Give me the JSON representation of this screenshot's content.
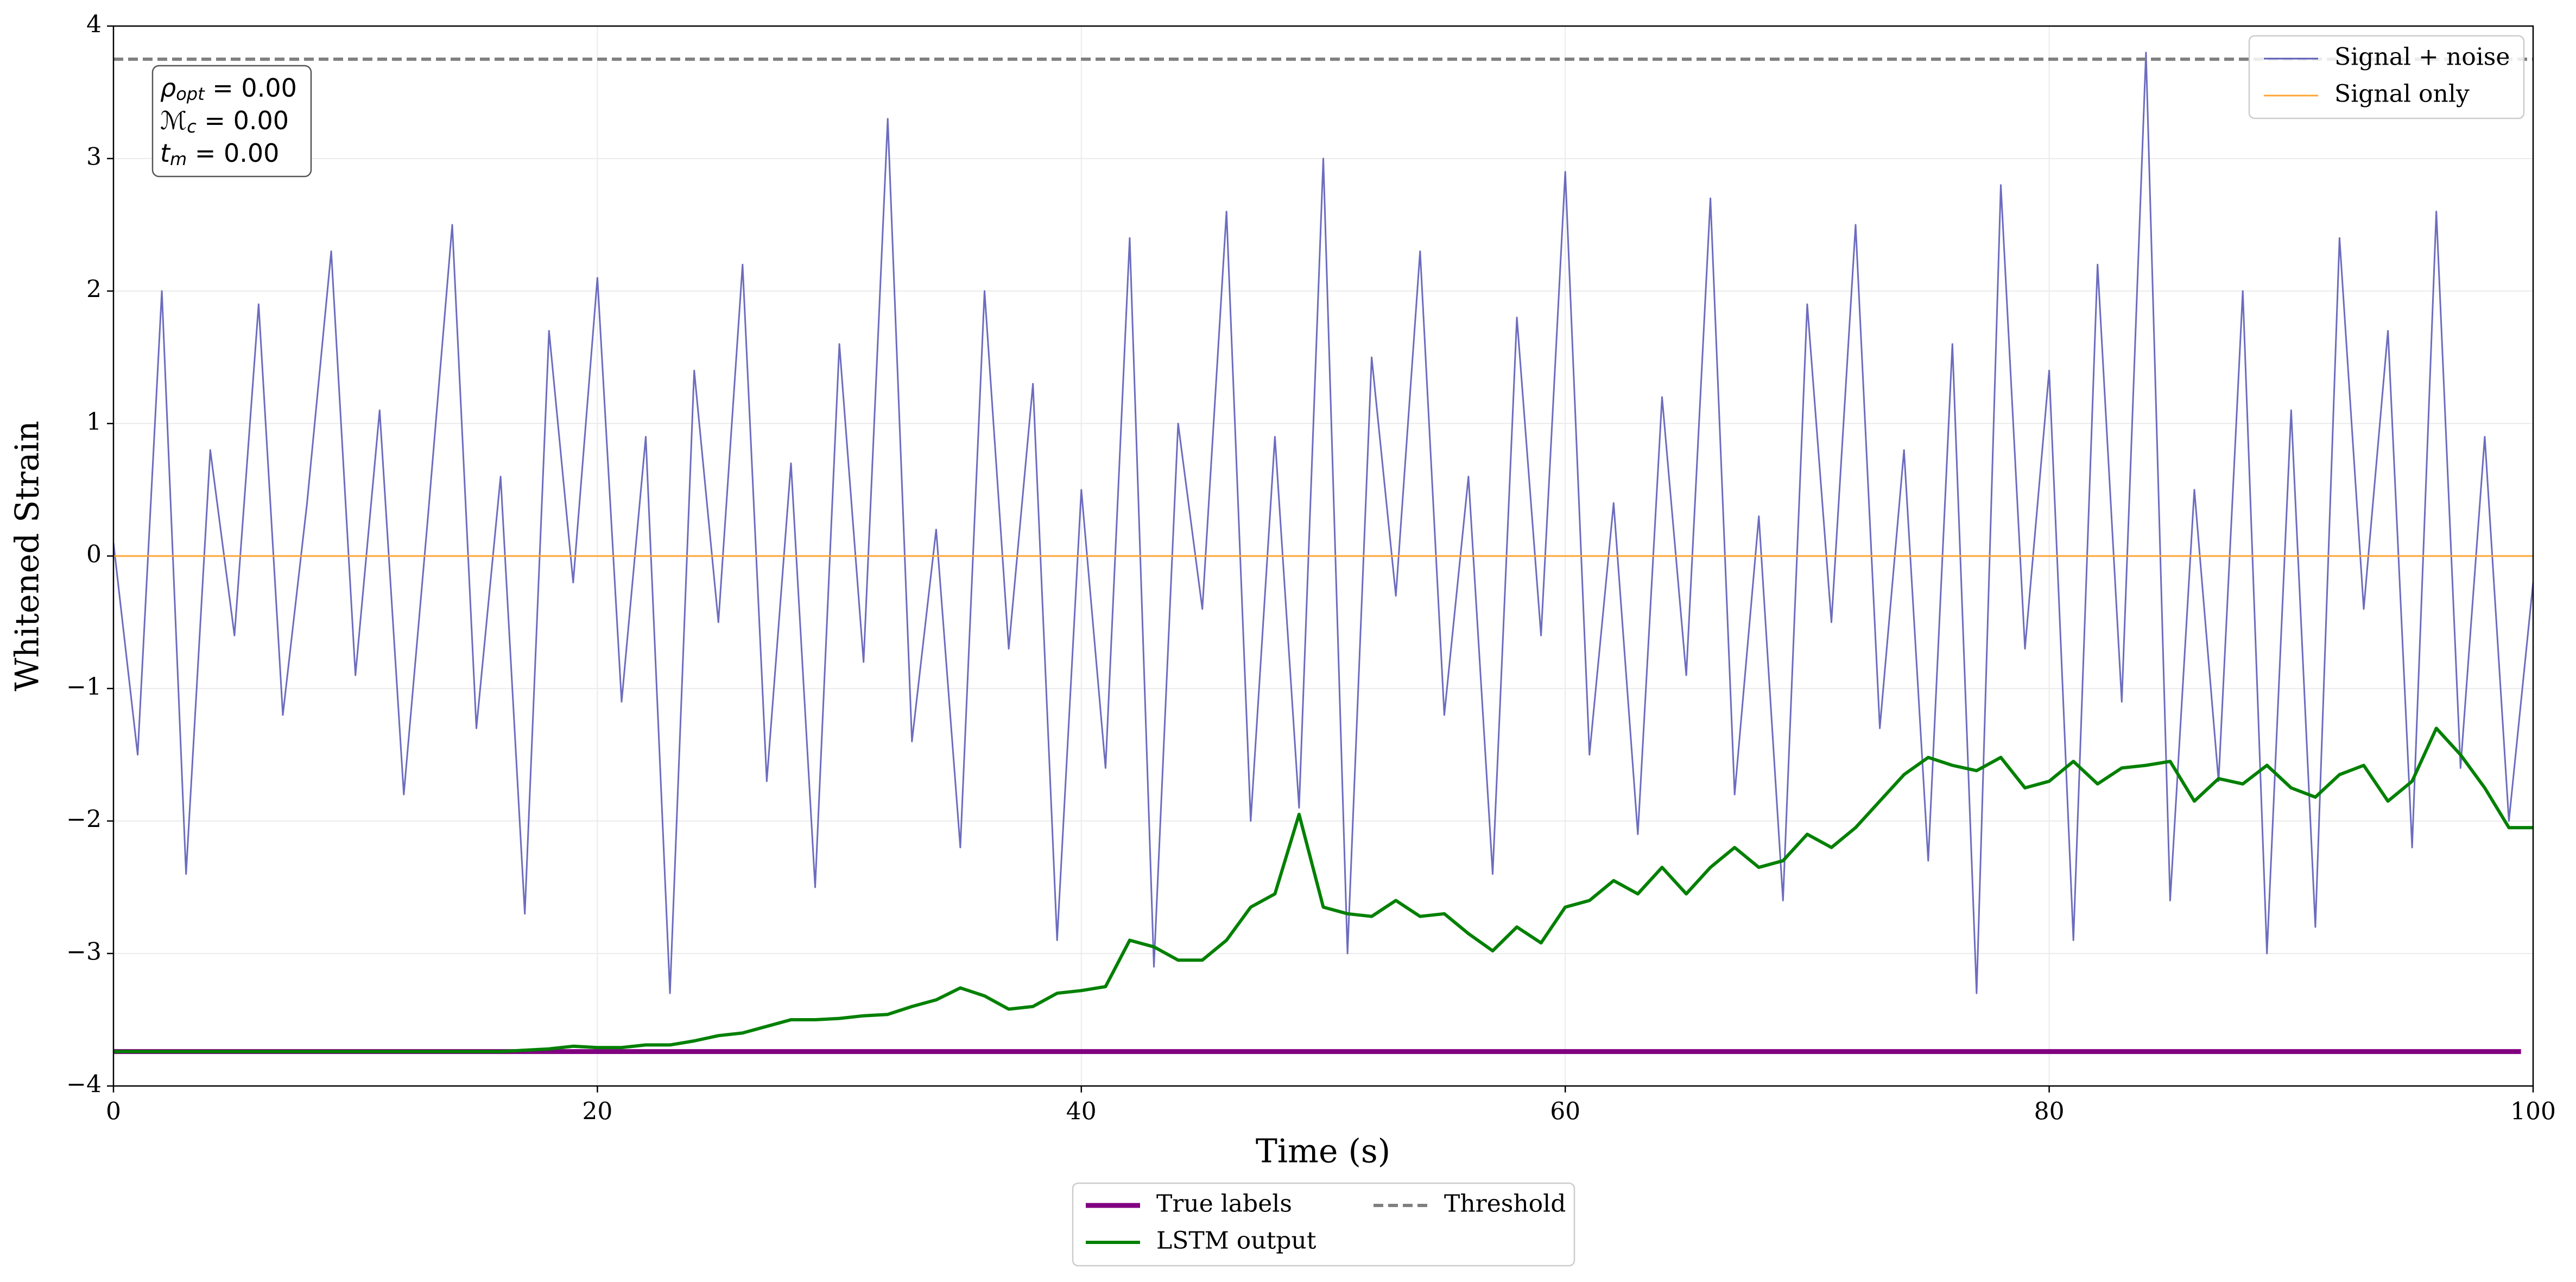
{
  "chart_data": {
    "type": "line",
    "xlabel": "Time (s)",
    "ylabel": "Whitened Strain",
    "xlim": [
      0,
      100
    ],
    "ylim": [
      -4,
      4
    ],
    "xticks": [
      0,
      20,
      40,
      60,
      80,
      100
    ],
    "yticks": [
      {
        "value": -4,
        "label": "−4"
      },
      {
        "value": -3,
        "label": "−3"
      },
      {
        "value": -2,
        "label": "−2"
      },
      {
        "value": -1,
        "label": "−1"
      },
      0,
      1,
      2,
      3,
      4
    ],
    "grid": true,
    "annotation": [
      {
        "symbol": "ρ",
        "sub": "opt",
        "text": " = 0.00"
      },
      {
        "symbol": "ℳ",
        "sub": "c",
        "text": " = 0.00"
      },
      {
        "symbol": "t",
        "sub": "m",
        "text": " = 0.00"
      }
    ],
    "series": [
      {
        "name": "Signal + noise",
        "color": "#5c5cb8",
        "width": 1,
        "dash": "solid",
        "legend": "upper right",
        "x": [
          0,
          1,
          2,
          3,
          4,
          5,
          6,
          7,
          8,
          9,
          10,
          11,
          12,
          13,
          14,
          15,
          16,
          17,
          18,
          19,
          20,
          21,
          22,
          23,
          24,
          25,
          26,
          27,
          28,
          29,
          30,
          31,
          32,
          33,
          34,
          35,
          36,
          37,
          38,
          39,
          40,
          41,
          42,
          43,
          44,
          45,
          46,
          47,
          48,
          49,
          50,
          51,
          52,
          53,
          54,
          55,
          56,
          57,
          58,
          59,
          60,
          61,
          62,
          63,
          64,
          65,
          66,
          67,
          68,
          69,
          70,
          71,
          72,
          73,
          74,
          75,
          76,
          77,
          78,
          79,
          80,
          81,
          82,
          83,
          84,
          85,
          86,
          87,
          88,
          89,
          90,
          91,
          92,
          93,
          94,
          95,
          96,
          97,
          98,
          99,
          100
        ],
        "values": [
          0.1,
          -1.5,
          2.0,
          -2.4,
          0.8,
          -0.6,
          1.9,
          -1.2,
          0.4,
          2.3,
          -0.9,
          1.1,
          -1.8,
          0.3,
          2.5,
          -1.3,
          0.6,
          -2.7,
          1.7,
          -0.2,
          2.1,
          -1.1,
          0.9,
          -3.3,
          1.4,
          -0.5,
          2.2,
          -1.7,
          0.7,
          -2.5,
          1.6,
          -0.8,
          3.3,
          -1.4,
          0.2,
          -2.2,
          2.0,
          -0.7,
          1.3,
          -2.9,
          0.5,
          -1.6,
          2.4,
          -3.1,
          1.0,
          -0.4,
          2.6,
          -2.0,
          0.9,
          -1.9,
          3.0,
          -3.0,
          1.5,
          -0.3,
          2.3,
          -1.2,
          0.6,
          -2.4,
          1.8,
          -0.6,
          2.9,
          -1.5,
          0.4,
          -2.1,
          1.2,
          -0.9,
          2.7,
          -1.8,
          0.3,
          -2.6,
          1.9,
          -0.5,
          2.5,
          -1.3,
          0.8,
          -2.3,
          1.6,
          -3.3,
          2.8,
          -0.7,
          1.4,
          -2.9,
          2.2,
          -1.1,
          3.8,
          -2.6,
          0.5,
          -1.7,
          2.0,
          -3.0,
          1.1,
          -2.8,
          2.4,
          -0.4,
          1.7,
          -2.2,
          2.6,
          -1.6,
          0.9,
          -2.0,
          -0.2
        ]
      },
      {
        "name": "Signal only",
        "color": "#ffa533",
        "width": 1,
        "dash": "solid",
        "legend": "upper right",
        "x": [
          0,
          100
        ],
        "values": [
          0,
          0
        ]
      },
      {
        "name": "True labels",
        "color": "#800080",
        "width": 3,
        "dash": "solid",
        "legend": "lower center outside",
        "x": [
          0,
          99.5
        ],
        "values": [
          -3.74,
          -3.74
        ]
      },
      {
        "name": "LSTM output",
        "color": "#008000",
        "width": 2,
        "dash": "solid",
        "legend": "lower center outside",
        "x": [
          0,
          1,
          2,
          3,
          4,
          5,
          6,
          7,
          8,
          9,
          10,
          11,
          12,
          13,
          14,
          15,
          16,
          17,
          18,
          19,
          20,
          21,
          22,
          23,
          24,
          25,
          26,
          27,
          28,
          29,
          30,
          31,
          32,
          33,
          34,
          35,
          36,
          37,
          38,
          39,
          40,
          41,
          42,
          43,
          44,
          45,
          46,
          47,
          48,
          49,
          50,
          51,
          52,
          53,
          54,
          55,
          56,
          57,
          58,
          59,
          60,
          61,
          62,
          63,
          64,
          65,
          66,
          67,
          68,
          69,
          70,
          71,
          72,
          73,
          74,
          75,
          76,
          77,
          78,
          79,
          80,
          81,
          82,
          83,
          84,
          85,
          86,
          87,
          88,
          89,
          90,
          91,
          92,
          93,
          94,
          95,
          96,
          97,
          98,
          99,
          100
        ],
        "values": [
          -3.74,
          -3.74,
          -3.74,
          -3.74,
          -3.74,
          -3.74,
          -3.74,
          -3.74,
          -3.74,
          -3.74,
          -3.74,
          -3.74,
          -3.74,
          -3.74,
          -3.74,
          -3.74,
          -3.74,
          -3.73,
          -3.72,
          -3.7,
          -3.71,
          -3.71,
          -3.69,
          -3.69,
          -3.66,
          -3.62,
          -3.6,
          -3.55,
          -3.5,
          -3.5,
          -3.49,
          -3.47,
          -3.46,
          -3.4,
          -3.35,
          -3.26,
          -3.32,
          -3.42,
          -3.4,
          -3.3,
          -3.28,
          -3.25,
          -2.9,
          -2.95,
          -3.05,
          -3.05,
          -2.9,
          -2.65,
          -2.55,
          -1.95,
          -2.65,
          -2.7,
          -2.72,
          -2.6,
          -2.72,
          -2.7,
          -2.85,
          -2.98,
          -2.8,
          -2.92,
          -2.65,
          -2.6,
          -2.45,
          -2.55,
          -2.35,
          -2.55,
          -2.35,
          -2.2,
          -2.35,
          -2.3,
          -2.1,
          -2.2,
          -2.05,
          -1.85,
          -1.65,
          -1.52,
          -1.58,
          -1.62,
          -1.52,
          -1.75,
          -1.7,
          -1.55,
          -1.72,
          -1.6,
          -1.58,
          -1.55,
          -1.85,
          -1.68,
          -1.72,
          -1.58,
          -1.75,
          -1.82,
          -1.65,
          -1.58,
          -1.85,
          -1.7,
          -1.3,
          -1.5,
          -1.75,
          -2.05,
          -2.05
        ]
      },
      {
        "name": "Threshold",
        "color": "#808080",
        "width": 2,
        "dash": "dashed",
        "legend": "lower center outside",
        "x": [
          0,
          100
        ],
        "values": [
          3.75,
          3.75
        ]
      }
    ]
  }
}
